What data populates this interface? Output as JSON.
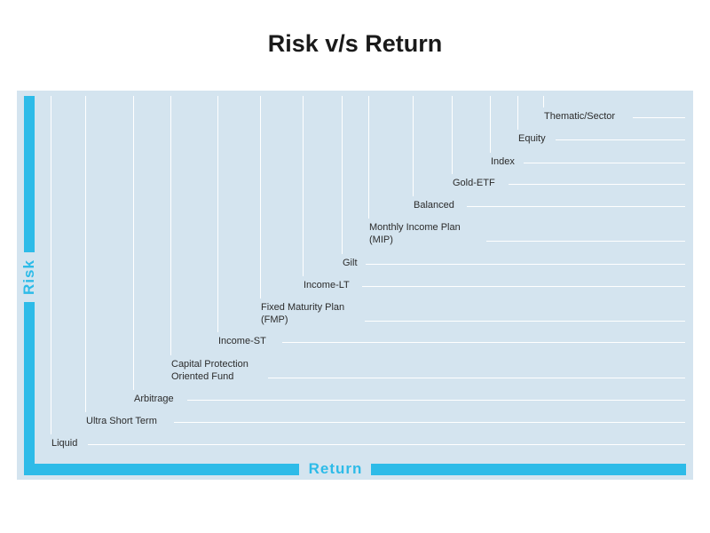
{
  "title": "Risk v/s Return",
  "axes": {
    "y_label": "Risk",
    "x_label": "Return"
  },
  "categories": [
    {
      "lines": [
        "Liquid"
      ]
    },
    {
      "lines": [
        "Ultra Short Term"
      ]
    },
    {
      "lines": [
        "Arbitrage"
      ]
    },
    {
      "lines": [
        "Capital Protection",
        "Oriented Fund"
      ]
    },
    {
      "lines": [
        "Income-ST"
      ]
    },
    {
      "lines": [
        "Fixed Maturity Plan",
        "(FMP)"
      ]
    },
    {
      "lines": [
        "Income-LT"
      ]
    },
    {
      "lines": [
        "Gilt"
      ]
    },
    {
      "lines": [
        "Monthly Income Plan",
        "(MIP)"
      ]
    },
    {
      "lines": [
        "Balanced"
      ]
    },
    {
      "lines": [
        "Gold-ETF"
      ]
    },
    {
      "lines": [
        "Index"
      ]
    },
    {
      "lines": [
        "Equity"
      ]
    },
    {
      "lines": [
        "Thematic/Sector"
      ]
    }
  ],
  "colors": {
    "panel": "#d4e4ef",
    "axis": "#2dbbe8",
    "text": "#2b2b2b"
  }
}
